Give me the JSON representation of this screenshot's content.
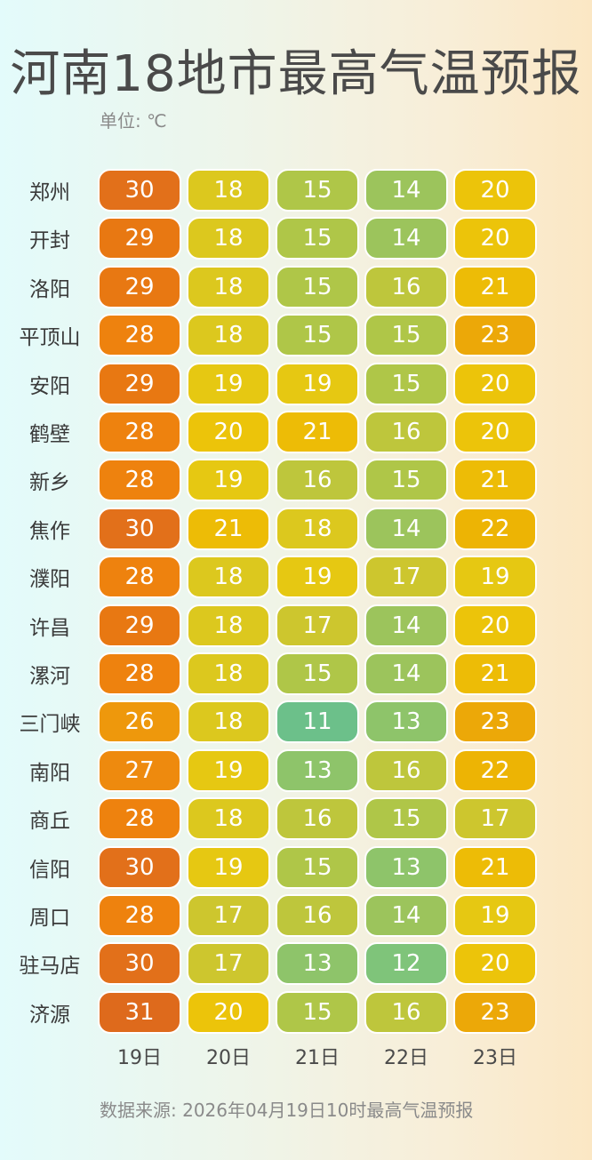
{
  "title": "河南18地市最高气温预报",
  "unit_label": "单位: ℃",
  "source": "数据来源: 2026年04月19日10时最高气温预报",
  "chart_data": {
    "type": "heatmap",
    "title": "河南18地市最高气温预报",
    "unit": "℃",
    "columns": [
      "19日",
      "20日",
      "21日",
      "22日",
      "23日"
    ],
    "rows": [
      {
        "city": "郑州",
        "values": [
          30,
          18,
          15,
          14,
          20
        ]
      },
      {
        "city": "开封",
        "values": [
          29,
          18,
          15,
          14,
          20
        ]
      },
      {
        "city": "洛阳",
        "values": [
          29,
          18,
          15,
          16,
          21
        ]
      },
      {
        "city": "平顶山",
        "values": [
          28,
          18,
          15,
          15,
          23
        ]
      },
      {
        "city": "安阳",
        "values": [
          29,
          19,
          19,
          15,
          20
        ]
      },
      {
        "city": "鹤壁",
        "values": [
          28,
          20,
          21,
          16,
          20
        ]
      },
      {
        "city": "新乡",
        "values": [
          28,
          19,
          16,
          15,
          21
        ]
      },
      {
        "city": "焦作",
        "values": [
          30,
          21,
          18,
          14,
          22
        ]
      },
      {
        "city": "濮阳",
        "values": [
          28,
          18,
          19,
          17,
          19
        ]
      },
      {
        "city": "许昌",
        "values": [
          29,
          18,
          17,
          14,
          20
        ]
      },
      {
        "city": "漯河",
        "values": [
          28,
          18,
          15,
          14,
          21
        ]
      },
      {
        "city": "三门峡",
        "values": [
          26,
          18,
          11,
          13,
          23
        ]
      },
      {
        "city": "南阳",
        "values": [
          27,
          19,
          13,
          16,
          22
        ]
      },
      {
        "city": "商丘",
        "values": [
          28,
          18,
          16,
          15,
          17
        ]
      },
      {
        "city": "信阳",
        "values": [
          30,
          19,
          15,
          13,
          21
        ]
      },
      {
        "city": "周口",
        "values": [
          28,
          17,
          16,
          14,
          19
        ]
      },
      {
        "city": "驻马店",
        "values": [
          30,
          17,
          13,
          12,
          20
        ]
      },
      {
        "city": "济源",
        "values": [
          31,
          20,
          15,
          16,
          23
        ]
      }
    ],
    "color_scale": {
      "11": "#6cc08a",
      "12": "#7fc47a",
      "13": "#8ec46a",
      "14": "#9cc45c",
      "15": "#afc648",
      "16": "#bec63c",
      "17": "#cdc62e",
      "18": "#dcc81e",
      "19": "#e6c812",
      "20": "#ecc40a",
      "21": "#edbc06",
      "22": "#edb404",
      "23": "#eca808",
      "26": "#ee980c",
      "27": "#ee8a0e",
      "28": "#ee820e",
      "29": "#e87812",
      "30": "#e2701a",
      "31": "#de6a1c"
    }
  }
}
